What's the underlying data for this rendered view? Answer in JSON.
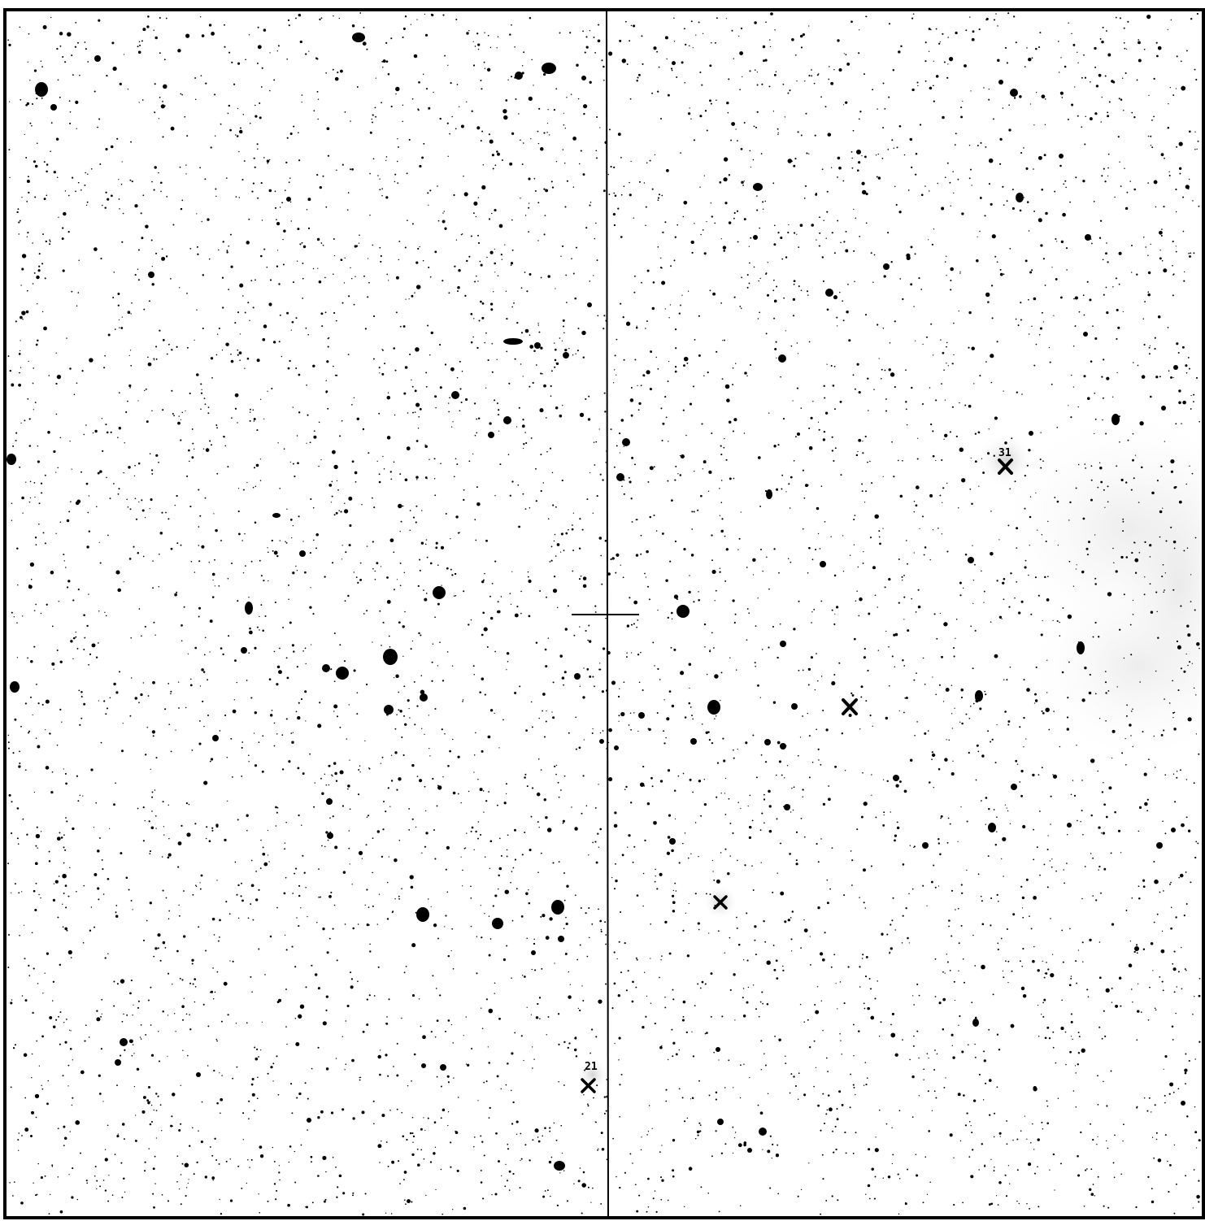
{
  "figure": {
    "background_color": "#ffffff",
    "ink_color": "#000000",
    "haze_color": "#e6e6e6"
  },
  "labels": {
    "marker_upper_right": "31",
    "marker_lower_left": "21"
  }
}
